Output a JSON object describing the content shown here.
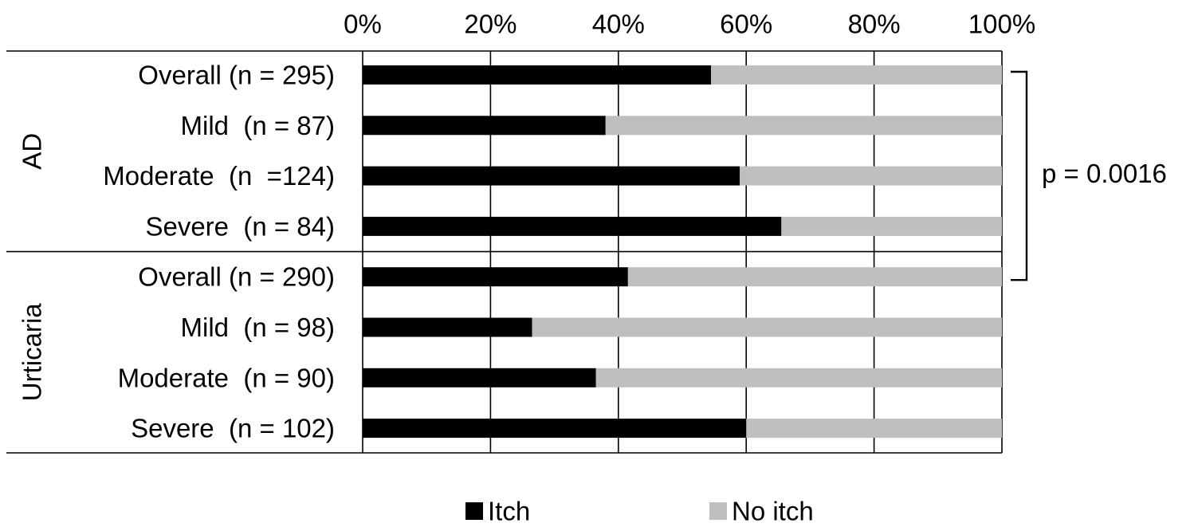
{
  "chart_data": {
    "type": "bar",
    "orientation": "horizontal",
    "stacked": true,
    "percent_scale": true,
    "x_ticks": [
      "0%",
      "20%",
      "40%",
      "60%",
      "80%",
      "100%"
    ],
    "xlim": [
      0,
      100
    ],
    "x_axis_position": "top",
    "grid": true,
    "legend_position": "bottom",
    "groups": [
      {
        "label": "AD",
        "categories": [
          "Overall (n = 295)",
          "Mild  (n = 87)",
          "Moderate  (n  =124)",
          "Severe  (n = 84)"
        ]
      },
      {
        "label": "Urticaria",
        "categories": [
          "Overall (n = 290)",
          "Mild  (n = 98)",
          "Moderate  (n = 90)",
          "Severe  (n = 102)"
        ]
      }
    ],
    "series": [
      {
        "name": "Itch",
        "color": "#000000",
        "values": [
          54.5,
          38,
          59,
          65.5,
          41.5,
          26.5,
          36.5,
          60
        ]
      },
      {
        "name": "No itch",
        "color": "#bfbfbf",
        "values": [
          45.5,
          62,
          41,
          34.5,
          58.5,
          73.5,
          63.5,
          40
        ]
      }
    ],
    "annotation": {
      "text": "p = 0.0016",
      "bracket_from_category": 0,
      "bracket_to_category": 4
    }
  }
}
